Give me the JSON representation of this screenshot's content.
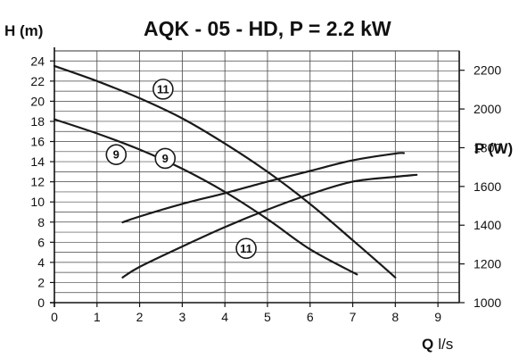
{
  "chart_data": {
    "type": "line",
    "title": "AQK - 05 - HD,  P = 2.2 kW",
    "ylabel": "H (m)",
    "y2label": "P (W)",
    "xlabel_main": "Q",
    "xlabel_unit": "l/s",
    "xlim": [
      0,
      9.5
    ],
    "ylim": [
      0,
      25
    ],
    "y2lim": [
      1000,
      2300
    ],
    "grid": true,
    "x_ticks": [
      "0",
      "1",
      "2",
      "3",
      "4",
      "5",
      "6",
      "7",
      "8",
      "9"
    ],
    "y_ticks": [
      "0",
      "2",
      "4",
      "6",
      "8",
      "10",
      "12",
      "14",
      "16",
      "18",
      "20",
      "22",
      "24"
    ],
    "y2_ticks": [
      "1000",
      "1200",
      "1400",
      "1600",
      "1800",
      "2000",
      "2200"
    ],
    "series": [
      {
        "name": "11",
        "kind": "head",
        "axis": "left",
        "x": [
          0,
          1,
          2,
          3,
          4,
          5,
          6,
          7,
          8
        ],
        "y": [
          23.5,
          22.0,
          20.3,
          18.3,
          15.8,
          13.0,
          9.8,
          6.2,
          2.5
        ],
        "label_at": [
          2.55,
          21.2
        ]
      },
      {
        "name": "9",
        "kind": "head",
        "axis": "left",
        "x": [
          0,
          1,
          2,
          3,
          4,
          5,
          6,
          7.1
        ],
        "y": [
          18.2,
          16.8,
          15.2,
          13.3,
          11.0,
          8.3,
          5.3,
          2.8
        ],
        "label_at": [
          1.45,
          14.7
        ]
      },
      {
        "name": "9",
        "kind": "power",
        "axis": "right",
        "x": [
          1.6,
          2,
          3,
          4,
          5,
          6,
          7,
          8,
          8.2
        ],
        "y": [
          1415,
          1445,
          1510,
          1565,
          1625,
          1680,
          1735,
          1770,
          1772
        ],
        "label_at": [
          2.6,
          1745
        ]
      },
      {
        "name": "11",
        "kind": "power",
        "axis": "right",
        "x": [
          1.6,
          2,
          3,
          4,
          5,
          6,
          7,
          8,
          8.5
        ],
        "y": [
          1130,
          1185,
          1290,
          1390,
          1480,
          1560,
          1625,
          1650,
          1660
        ],
        "label_at": [
          4.5,
          1280
        ]
      }
    ]
  }
}
